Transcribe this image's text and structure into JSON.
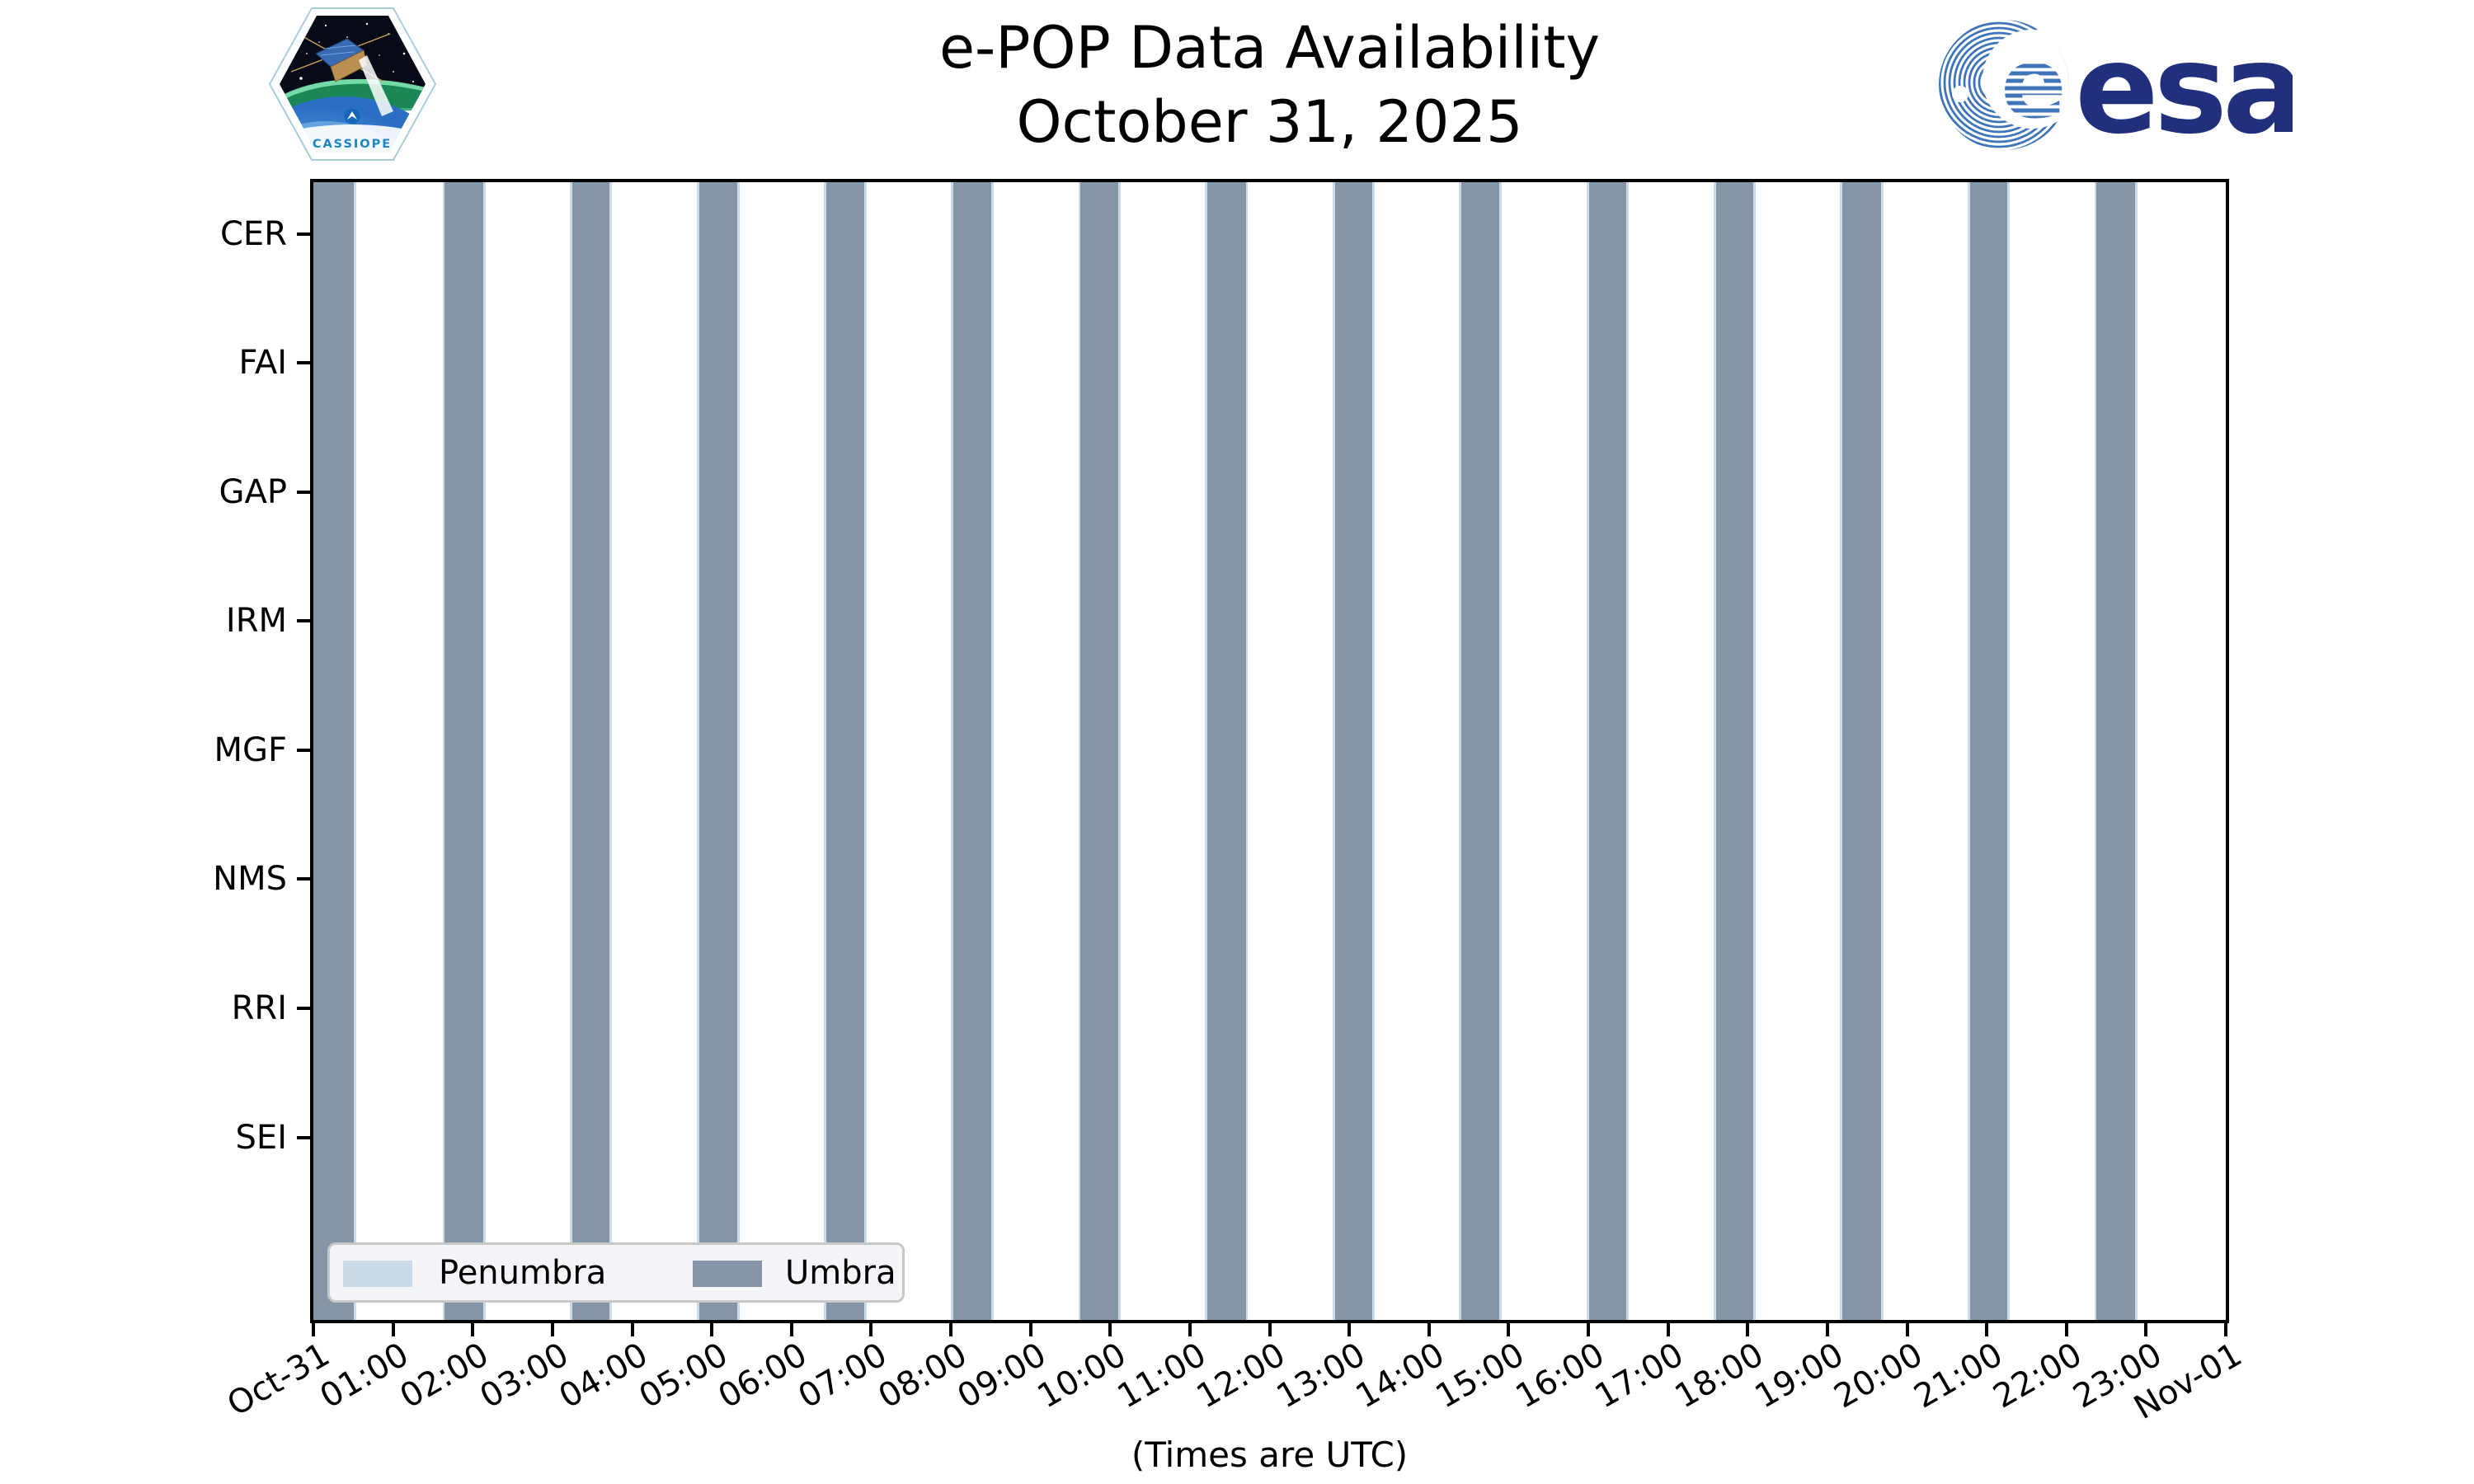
{
  "header": {
    "title_line1": "e-POP Data Availability",
    "title_line2": "October 31, 2025",
    "cassiope_patch": {
      "label": "CASSIOPE"
    },
    "esa_logo": {
      "label": "esa"
    }
  },
  "chart_data": {
    "type": "bar",
    "variant": "availability/eclipse timeline: full-height vertical umbra spans with thin penumbra edges over a 24-hour UTC axis; instrument rows CER..SEI shown with no data segments plotted",
    "title": "e-POP Data Availability",
    "subtitle": "October 31, 2025",
    "xlabel": "(Times are UTC)",
    "x_axis": {
      "start_label": "Oct-31",
      "end_label": "Nov-01",
      "hours_span": 24,
      "tick_interval_hours": 1
    },
    "x_tick_labels": [
      "Oct-31",
      "01:00",
      "02:00",
      "03:00",
      "04:00",
      "05:00",
      "06:00",
      "07:00",
      "08:00",
      "09:00",
      "10:00",
      "11:00",
      "12:00",
      "13:00",
      "14:00",
      "15:00",
      "16:00",
      "17:00",
      "18:00",
      "19:00",
      "20:00",
      "21:00",
      "22:00",
      "23:00",
      "Nov-01"
    ],
    "y_categories": [
      "CER",
      "FAI",
      "GAP",
      "IRM",
      "MGF",
      "NMS",
      "RRI",
      "SEI"
    ],
    "grid": false,
    "legend": {
      "position": "lower left",
      "entries": [
        {
          "label": "Penumbra",
          "color": "#ccdbe9"
        },
        {
          "label": "Umbra",
          "color": "#8596a8"
        }
      ]
    },
    "umbra_intervals_hours": [
      [
        0.0,
        0.51
      ],
      [
        1.65,
        2.13
      ],
      [
        3.25,
        3.72
      ],
      [
        4.84,
        5.32
      ],
      [
        6.44,
        6.91
      ],
      [
        8.03,
        8.51
      ],
      [
        9.63,
        10.1
      ],
      [
        11.22,
        11.7
      ],
      [
        12.82,
        13.29
      ],
      [
        14.41,
        14.88
      ],
      [
        16.01,
        16.48
      ],
      [
        17.6,
        18.07
      ],
      [
        19.19,
        19.67
      ],
      [
        20.79,
        21.26
      ],
      [
        22.38,
        22.86
      ]
    ],
    "penumbra_edge_duration_hours": 0.03,
    "orbital_period_hours_estimate": 1.6
  },
  "colors": {
    "umbra": "#8596a8",
    "penumbra": "#ccdbe9",
    "axis": "#000000",
    "legend_bg": "#f3f5f8",
    "legend_border": "#c8c8c8",
    "esa_blue": "#21307c",
    "esa_globe_blue": "#3f74b8",
    "cassiope_blue": "#1b85c6"
  }
}
